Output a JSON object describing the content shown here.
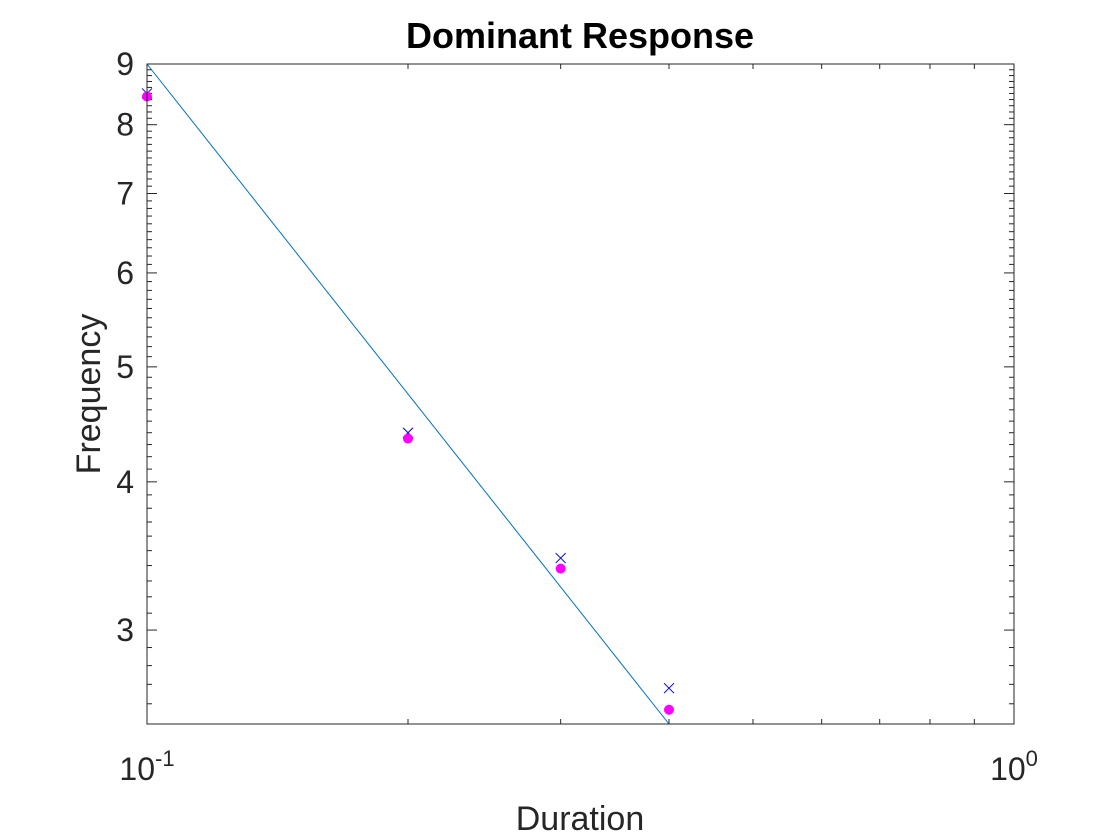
{
  "chart_data": {
    "type": "scatter",
    "title": "Dominant Response",
    "xlabel": "Duration",
    "ylabel": "Frequency",
    "xscale": "log",
    "yscale": "log",
    "xlim": [
      0.1,
      1
    ],
    "ylim": [
      2.5,
      9
    ],
    "xticks": [
      {
        "value": 0.1,
        "base": "10",
        "exp": "-1"
      },
      {
        "value": 1,
        "base": "10",
        "exp": "0"
      }
    ],
    "yticks": [
      {
        "value": 3,
        "label": "3"
      },
      {
        "value": 4,
        "label": "4"
      },
      {
        "value": 5,
        "label": "5"
      },
      {
        "value": 6,
        "label": "6"
      },
      {
        "value": 7,
        "label": "7"
      },
      {
        "value": 8,
        "label": "8"
      },
      {
        "value": 9,
        "label": "9"
      }
    ],
    "grid": false,
    "series": [
      {
        "marker": "x",
        "color": "#0000ff",
        "points": [
          {
            "x": 0.1,
            "y": 8.5
          },
          {
            "x": 0.2,
            "y": 4.4
          },
          {
            "x": 0.3,
            "y": 3.45
          },
          {
            "x": 0.4,
            "y": 2.68
          }
        ]
      },
      {
        "marker": "filled-circle",
        "color": "#ff00ff",
        "points": [
          {
            "x": 0.1,
            "y": 8.45
          },
          {
            "x": 0.2,
            "y": 4.35
          },
          {
            "x": 0.3,
            "y": 3.38
          },
          {
            "x": 0.4,
            "y": 2.57
          }
        ]
      },
      {
        "marker": "line",
        "color": "#0072bd",
        "points": [
          {
            "x": 0.1,
            "y": 9.0
          },
          {
            "x": 0.4,
            "y": 2.5
          }
        ]
      }
    ]
  }
}
